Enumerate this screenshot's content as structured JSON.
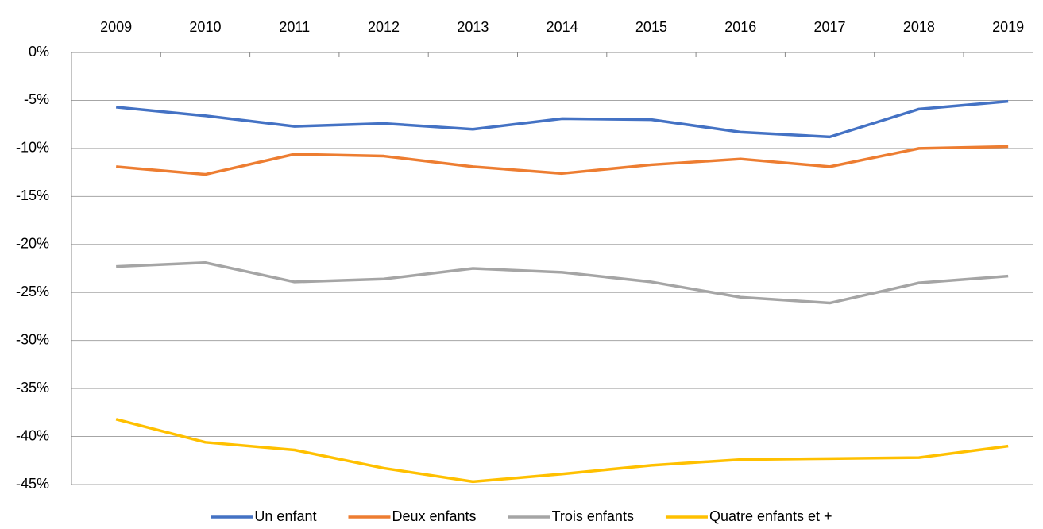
{
  "chart_data": {
    "type": "line",
    "categories": [
      "2009",
      "2010",
      "2011",
      "2012",
      "2013",
      "2014",
      "2015",
      "2016",
      "2017",
      "2018",
      "2019"
    ],
    "ylim": [
      -45,
      0
    ],
    "yticks": [
      {
        "value": 0,
        "label": "0%"
      },
      {
        "value": -5,
        "label": "-5%"
      },
      {
        "value": -10,
        "label": "-10%"
      },
      {
        "value": -15,
        "label": "-15%"
      },
      {
        "value": -20,
        "label": "-20%"
      },
      {
        "value": -25,
        "label": "-25%"
      },
      {
        "value": -30,
        "label": "-30%"
      },
      {
        "value": -35,
        "label": "-35%"
      },
      {
        "value": -40,
        "label": "-40%"
      },
      {
        "value": -45,
        "label": "-45%"
      }
    ],
    "grid": true,
    "legend": "bottom",
    "series": [
      {
        "name": "Un enfant",
        "color": "#4472c4",
        "values": [
          -5.7,
          -6.6,
          -7.7,
          -7.4,
          -8.0,
          -6.9,
          -7.0,
          -8.3,
          -8.8,
          -5.9,
          -5.1
        ]
      },
      {
        "name": "Deux enfants",
        "color": "#ed7d31",
        "values": [
          -11.9,
          -12.7,
          -10.6,
          -10.8,
          -11.9,
          -12.6,
          -11.7,
          -11.1,
          -11.9,
          -10.0,
          -9.8
        ]
      },
      {
        "name": "Trois enfants",
        "color": "#a5a5a5",
        "values": [
          -22.3,
          -21.9,
          -23.9,
          -23.6,
          -22.5,
          -22.9,
          -23.9,
          -25.5,
          -26.1,
          -24.0,
          -23.3
        ]
      },
      {
        "name": "Quatre enfants et +",
        "color": "#ffc000",
        "values": [
          -38.2,
          -40.6,
          -41.4,
          -43.3,
          -44.7,
          -43.9,
          -43.0,
          -42.4,
          -42.3,
          -42.2,
          -41.0
        ]
      }
    ]
  }
}
